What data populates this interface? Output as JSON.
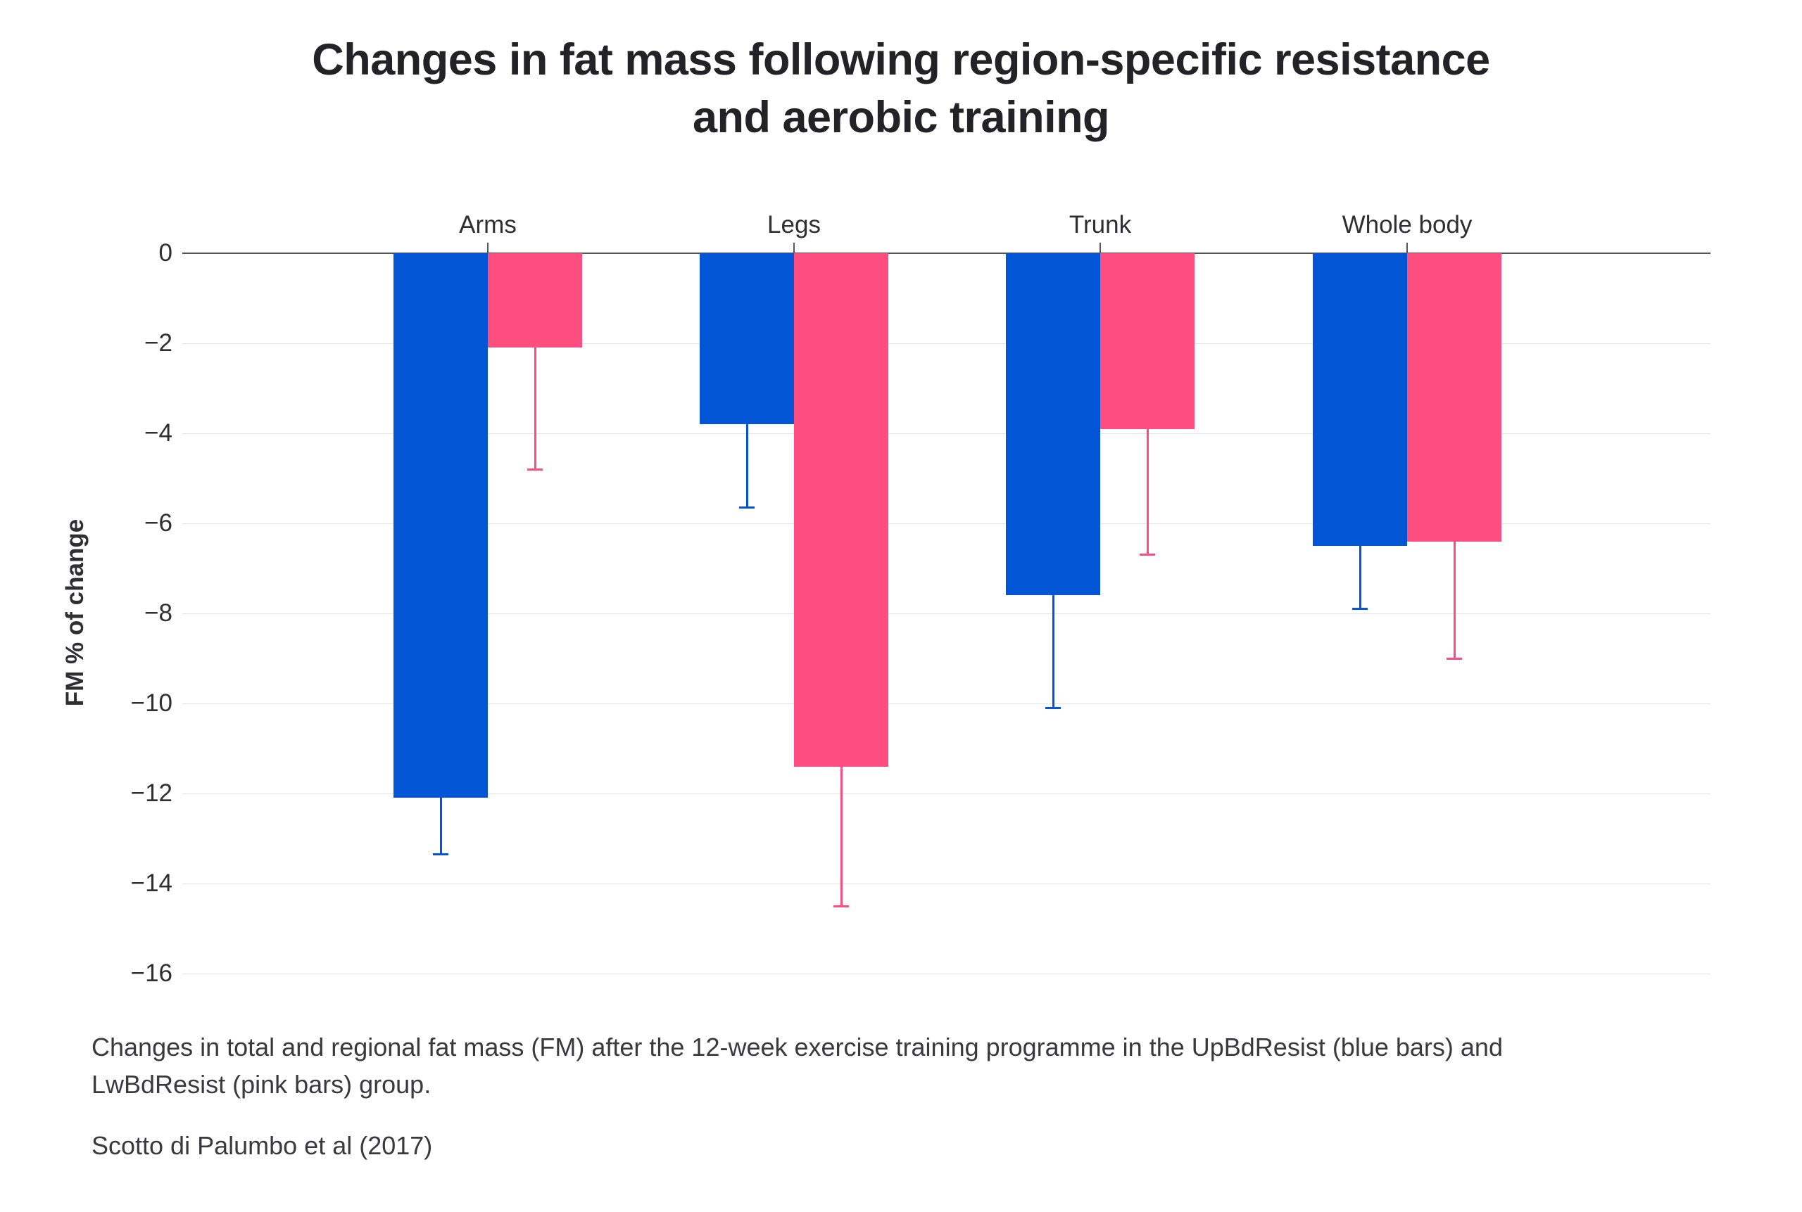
{
  "title": {
    "line1": "Changes in fat mass following region-specific resistance",
    "line2": "and aerobic training"
  },
  "caption": {
    "line1": "Changes in total and regional fat mass (FM) after the 12-week exercise training programme in the UpBdResist (blue bars) and",
    "line2": "LwBdResist (pink bars) group."
  },
  "source": "Scotto di Palumbo et al (2017)",
  "colors": {
    "blue_bar": "#0255D5",
    "pink_bar": "#FD4E7F",
    "axis_line": "#55555a",
    "gridline": "#e4e4e6",
    "text": "#2e2e33"
  },
  "chart_data": {
    "type": "bar",
    "title": "Changes in fat mass following region-specific resistance and aerobic training",
    "xlabel": "",
    "ylabel": "FM % of change",
    "categories": [
      "Arms",
      "Legs",
      "Trunk",
      "Whole body"
    ],
    "series": [
      {
        "name": "UpBdResist",
        "color": "#0255D5",
        "values": [
          -12.1,
          -3.8,
          -7.6,
          -6.5
        ],
        "errors": [
          1.25,
          1.85,
          2.5,
          1.4
        ]
      },
      {
        "name": "LwBdResist",
        "color": "#FD4E7F",
        "values": [
          -2.1,
          -11.4,
          -3.9,
          -6.4
        ],
        "errors": [
          2.7,
          3.1,
          2.8,
          2.6
        ]
      }
    ],
    "error_bars": "downward only, with end caps",
    "yticks": [
      0,
      -2,
      -4,
      -6,
      -8,
      -10,
      -12,
      -14,
      -16
    ],
    "ylim": [
      -16.5,
      0
    ],
    "grid": true,
    "legend": "none (series identified in caption text)"
  }
}
